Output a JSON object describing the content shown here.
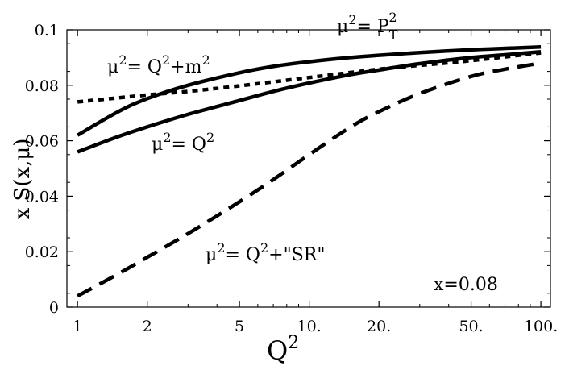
{
  "chart_data": {
    "type": "line",
    "title": "",
    "xlabel": "Q",
    "xlabel_sup": "2",
    "ylabel": "x  S(x,μ)",
    "xscale": "log",
    "xlim": [
      0.9,
      110
    ],
    "ylim": [
      0,
      0.1
    ],
    "x_ticks": [
      {
        "value": 1,
        "label": "1"
      },
      {
        "value": 2,
        "label": "2"
      },
      {
        "value": 5,
        "label": "5"
      },
      {
        "value": 10,
        "label": "10."
      },
      {
        "value": 20,
        "label": "20."
      },
      {
        "value": 50,
        "label": "50."
      },
      {
        "value": 100,
        "label": "100."
      }
    ],
    "y_ticks": [
      {
        "value": 0,
        "label": "0"
      },
      {
        "value": 0.02,
        "label": "0.02"
      },
      {
        "value": 0.04,
        "label": "0.04"
      },
      {
        "value": 0.06,
        "label": "0.06"
      },
      {
        "value": 0.08,
        "label": "0.08"
      },
      {
        "value": 0.1,
        "label": "0.1"
      }
    ],
    "grid": false,
    "legend": "none",
    "series": [
      {
        "style": "solid",
        "label_parts": [
          "μ",
          "2",
          "= P",
          "T",
          "2"
        ],
        "x": [
          1,
          1.5,
          2,
          3,
          5,
          7,
          10,
          15,
          20,
          30,
          50,
          70,
          100
        ],
        "y": [
          0.062,
          0.0705,
          0.0752,
          0.08,
          0.0845,
          0.0868,
          0.0885,
          0.09,
          0.0908,
          0.0918,
          0.0928,
          0.0933,
          0.0938
        ]
      },
      {
        "style": "solid",
        "label_parts": [
          "μ",
          "2",
          "= Q",
          "2"
        ],
        "x": [
          1,
          1.5,
          2,
          3,
          5,
          7,
          10,
          15,
          20,
          30,
          50,
          70,
          100
        ],
        "y": [
          0.056,
          0.0615,
          0.065,
          0.0695,
          0.0745,
          0.0778,
          0.0808,
          0.0838,
          0.0855,
          0.0878,
          0.09,
          0.091,
          0.0921
        ]
      },
      {
        "style": "dotted",
        "label_parts": [
          "μ",
          "2",
          "= Q",
          "2",
          "+m",
          "2"
        ],
        "x": [
          1,
          2,
          3,
          5,
          10,
          20,
          30,
          50,
          100
        ],
        "y": [
          0.074,
          0.0765,
          0.0778,
          0.0798,
          0.0828,
          0.0858,
          0.0872,
          0.0889,
          0.0917
        ]
      },
      {
        "style": "dashed",
        "label_parts": [
          "μ",
          "2",
          "= Q",
          "2",
          "+\"SR\""
        ],
        "x": [
          1,
          1.5,
          2,
          3,
          5,
          7,
          10,
          15,
          20,
          30,
          50,
          70,
          100
        ],
        "y": [
          0.004,
          0.012,
          0.018,
          0.0265,
          0.038,
          0.046,
          0.055,
          0.0648,
          0.0705,
          0.077,
          0.0832,
          0.0858,
          0.088
        ]
      }
    ],
    "annotation": "x=0.08"
  }
}
